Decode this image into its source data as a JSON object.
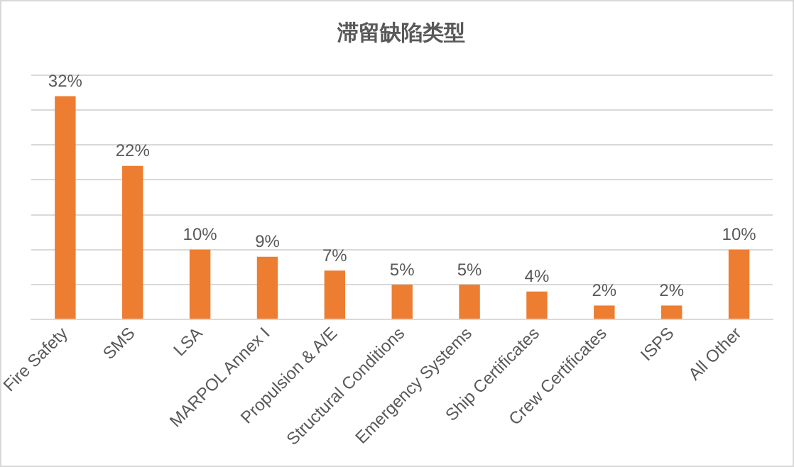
{
  "chart_data": {
    "type": "bar",
    "title": "滞留缺陷类型",
    "categories": [
      "Fire Safety",
      "SMS",
      "LSA",
      "MARPOL Annex I",
      "Propulsion & A/E",
      "Structural Conditions",
      "Emergency Systems",
      "Ship Certificates",
      "Crew Certificates",
      "ISPS",
      "All Other"
    ],
    "values": [
      32,
      22,
      10,
      9,
      7,
      5,
      5,
      4,
      2,
      2,
      10
    ],
    "value_labels": [
      "32%",
      "22%",
      "10%",
      "9%",
      "7%",
      "5%",
      "5%",
      "4%",
      "2%",
      "2%",
      "10%"
    ],
    "color": "#ed7d31",
    "ylim": [
      0,
      35
    ],
    "yticks": [
      {
        "value": 0,
        "label": null
      },
      {
        "value": 5,
        "label": null
      },
      {
        "value": 10,
        "label": null
      },
      {
        "value": 15,
        "label": null
      },
      {
        "value": 20,
        "label": null
      },
      {
        "value": 25,
        "label": null
      },
      {
        "value": 30,
        "label": null
      },
      {
        "value": 35,
        "label": null
      }
    ],
    "tick_labels": "x",
    "grid": "y",
    "legend": false
  }
}
